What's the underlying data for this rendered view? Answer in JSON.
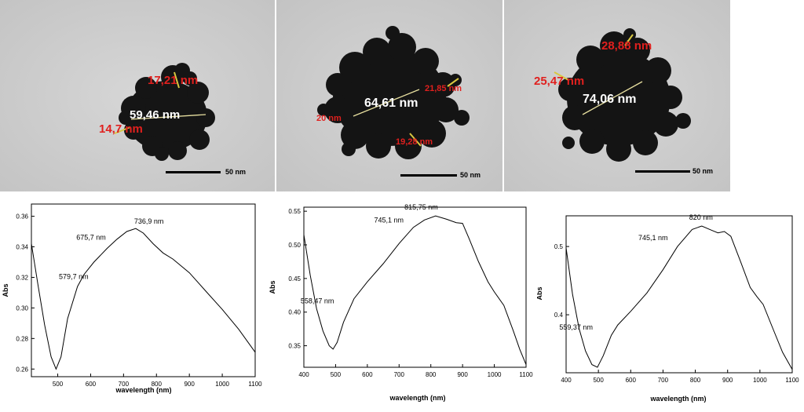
{
  "tem_images": [
    {
      "scale_label": "50 nm",
      "measurements": [
        {
          "text": "17,21 nm",
          "color": "red"
        },
        {
          "text": "59,46 nm",
          "color": "white"
        },
        {
          "text": "14,7 nm",
          "color": "red"
        }
      ]
    },
    {
      "scale_label": "50 nm",
      "measurements": [
        {
          "text": "64,61 nm",
          "color": "white"
        },
        {
          "text": "21,85 nm",
          "color": "red"
        },
        {
          "text": "20 nm",
          "color": "red"
        },
        {
          "text": "19,28 nm",
          "color": "red"
        }
      ]
    },
    {
      "scale_label": "50 nm",
      "measurements": [
        {
          "text": "28,88 nm",
          "color": "red"
        },
        {
          "text": "25,47 nm",
          "color": "red"
        },
        {
          "text": "74,06 nm",
          "color": "white"
        }
      ]
    }
  ],
  "chart_data": [
    {
      "type": "line",
      "xlabel": "wavelength (nm)",
      "ylabel": "Abs",
      "xlim": [
        420,
        1100
      ],
      "ylim": [
        0.255,
        0.368
      ],
      "xticks": [
        500,
        600,
        700,
        800,
        900,
        1000,
        1100
      ],
      "yticks": [
        0.26,
        0.28,
        0.3,
        0.32,
        0.34,
        0.36
      ],
      "ytick_labels": [
        "0.26",
        "0.28",
        "0.30",
        "0.32",
        "0.34",
        "0.36"
      ],
      "x": [
        420,
        440,
        460,
        480,
        495,
        510,
        530,
        560,
        580,
        610,
        650,
        680,
        710,
        737,
        760,
        790,
        820,
        850,
        900,
        950,
        1000,
        1050,
        1100
      ],
      "y": [
        0.342,
        0.315,
        0.289,
        0.268,
        0.26,
        0.268,
        0.293,
        0.314,
        0.322,
        0.33,
        0.339,
        0.345,
        0.35,
        0.352,
        0.349,
        0.342,
        0.336,
        0.332,
        0.323,
        0.311,
        0.299,
        0.286,
        0.271
      ],
      "annotations": [
        {
          "text": "579,7 nm",
          "x": 580,
          "y": 0.322
        },
        {
          "text": "675,7 nm",
          "x": 676,
          "y": 0.344
        },
        {
          "text": "736,9 nm",
          "x": 737,
          "y": 0.352
        }
      ]
    },
    {
      "type": "line",
      "xlabel": "wavelength (nm)",
      "ylabel": "Abs",
      "xlim": [
        400,
        1100
      ],
      "ylim": [
        0.318,
        0.556
      ],
      "xticks": [
        400,
        500,
        600,
        700,
        800,
        900,
        1000,
        1100
      ],
      "yticks": [
        0.35,
        0.4,
        0.45,
        0.5,
        0.55
      ],
      "ytick_labels": [
        "0.35",
        "0.40",
        "0.45",
        "0.50",
        "0.55"
      ],
      "x": [
        400,
        420,
        440,
        460,
        480,
        492,
        505,
        525,
        558,
        600,
        650,
        700,
        745,
        780,
        815,
        850,
        880,
        900,
        920,
        950,
        980,
        1000,
        1030,
        1060,
        1080,
        1100
      ],
      "y": [
        0.515,
        0.455,
        0.405,
        0.372,
        0.35,
        0.345,
        0.355,
        0.385,
        0.42,
        0.445,
        0.472,
        0.502,
        0.526,
        0.537,
        0.543,
        0.538,
        0.533,
        0.532,
        0.51,
        0.475,
        0.445,
        0.43,
        0.41,
        0.372,
        0.345,
        0.322
      ],
      "annotations": [
        {
          "text": "558,47 nm",
          "x": 558,
          "y": 0.42
        },
        {
          "text": "745,1 nm",
          "x": 745,
          "y": 0.526
        },
        {
          "text": "815,75 nm",
          "x": 816,
          "y": 0.543
        }
      ]
    },
    {
      "type": "line",
      "xlabel": "wavelength (nm)",
      "ylabel": "Abs",
      "xlim": [
        400,
        1100
      ],
      "ylim": [
        0.315,
        0.545
      ],
      "xticks": [
        400,
        500,
        600,
        700,
        800,
        900,
        1000,
        1100
      ],
      "yticks": [
        0.4,
        0.5
      ],
      "ytick_labels": [
        "0.4",
        "0.5"
      ],
      "x": [
        400,
        420,
        440,
        460,
        480,
        497,
        515,
        540,
        560,
        600,
        650,
        700,
        745,
        790,
        820,
        850,
        870,
        890,
        910,
        940,
        970,
        990,
        1010,
        1040,
        1070,
        1100
      ],
      "y": [
        0.498,
        0.43,
        0.38,
        0.347,
        0.327,
        0.323,
        0.34,
        0.37,
        0.385,
        0.405,
        0.432,
        0.466,
        0.5,
        0.525,
        0.53,
        0.524,
        0.52,
        0.522,
        0.515,
        0.478,
        0.44,
        0.427,
        0.415,
        0.38,
        0.345,
        0.32
      ],
      "annotations": [
        {
          "text": "559,37 nm",
          "x": 559,
          "y": 0.385
        },
        {
          "text": "745,1 nm",
          "x": 745,
          "y": 0.5
        },
        {
          "text": "820 nm",
          "x": 820,
          "y": 0.53
        }
      ]
    }
  ]
}
